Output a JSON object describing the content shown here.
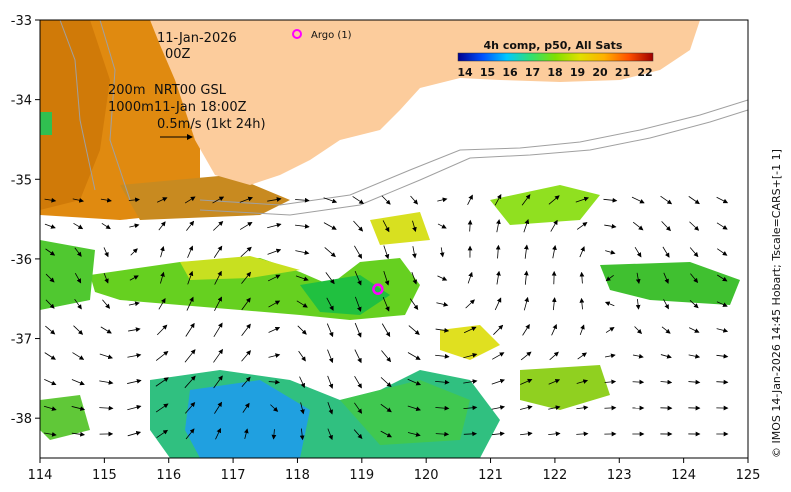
{
  "header": {
    "date": "11-Jan-2026",
    "time": "00Z",
    "argo_label": "Argo (1)"
  },
  "legend_text": {
    "isobath_200": "200m",
    "isobath_1000": "1000m",
    "current_source": "NRT00 GSL",
    "current_time": "11-Jan 18:00Z",
    "scale_label": "0.5m/s (1kt 24h)"
  },
  "colorbar": {
    "title": "4h comp, p50, All Sats",
    "ticks": [
      "14",
      "15",
      "16",
      "17",
      "18",
      "19",
      "20",
      "21",
      "22"
    ],
    "stops": [
      "#00008f",
      "#0050ff",
      "#00c8ff",
      "#30e070",
      "#80e000",
      "#e0e000",
      "#ffb000",
      "#ff5000",
      "#a00000"
    ]
  },
  "credit": "© IMOS 14-Jan-2026 14:45 Hobart; Tscale=CARS+[-1 1]",
  "axes": {
    "x_ticks": [
      "114",
      "115",
      "116",
      "117",
      "118",
      "119",
      "120",
      "121",
      "122",
      "123",
      "124",
      "125"
    ],
    "y_ticks": [
      "-33",
      "-34",
      "-35",
      "-36",
      "-37",
      "-38"
    ],
    "lon_range": [
      114,
      125
    ],
    "lat_range": [
      -33,
      -38.5
    ]
  },
  "argo_float": {
    "lon": 119.25,
    "lat": -36.38
  },
  "colors": {
    "land": "#fccc9c",
    "argo": "#ff00ff",
    "isobath": "#a0a0a0"
  }
}
